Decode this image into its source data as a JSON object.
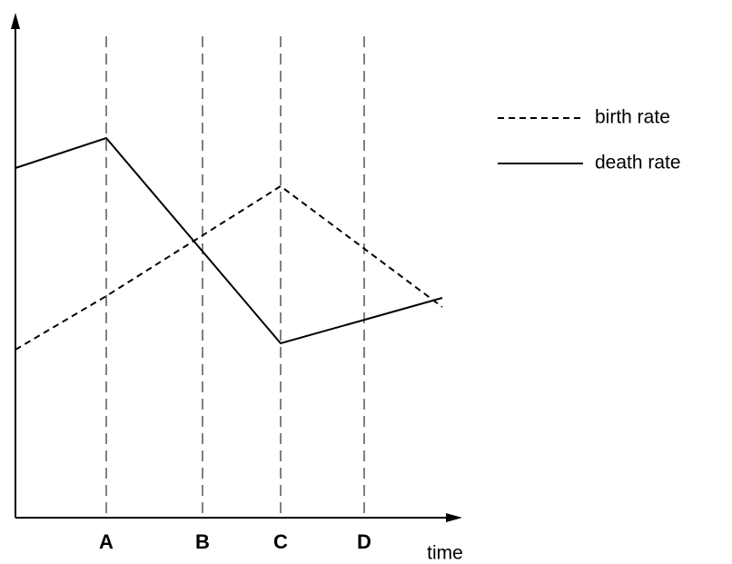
{
  "chart_data": {
    "type": "line",
    "x_label": "time",
    "x": [
      0,
      100,
      292,
      470
    ],
    "xlim": [
      0,
      488
    ],
    "xticks": [
      {
        "value": 100,
        "label": "A"
      },
      {
        "value": 206,
        "label": "B"
      },
      {
        "value": 292,
        "label": "C"
      },
      {
        "value": 384,
        "label": "D"
      }
    ],
    "ylim": [
      0,
      550
    ],
    "grid": true,
    "legend": "right",
    "series": [
      {
        "name": "birth rate",
        "color": "#000000",
        "dash": "dashed",
        "values": [
          185,
          244,
          365,
          232
        ]
      },
      {
        "name": "death rate",
        "color": "#000000",
        "dash": "solid",
        "values": [
          385,
          418,
          192,
          242
        ]
      }
    ]
  }
}
